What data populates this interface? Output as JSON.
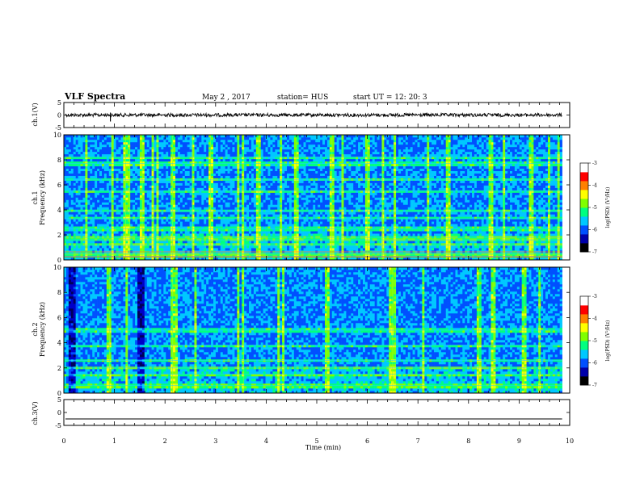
{
  "header": {
    "title": "VLF Spectra",
    "date": "May 2  , 2017",
    "station": "station= HUS",
    "start": "start  UT  =    12: 20: 3"
  },
  "chart_data": [
    {
      "type": "line",
      "panel": "ch1-waveform",
      "ylabel": "ch.1(V)",
      "xlim": [
        0,
        10
      ],
      "ylim": [
        -5,
        5
      ],
      "yticks": [
        "5",
        "0",
        "-5"
      ],
      "level": 0,
      "description_series": "noisy trace near 0 V"
    },
    {
      "type": "heatmap",
      "panel": "ch1-spectrogram",
      "ylabel": "ch.1\nFrequency (kHz)",
      "xlim": [
        0,
        9.85
      ],
      "ylim": [
        0,
        10
      ],
      "yticks": [
        "0",
        "2",
        "4",
        "6",
        "8",
        "10"
      ],
      "colorbar": {
        "label": "log(PSD) (V²/Hz)",
        "ticks": [
          "-3",
          "-4",
          "-5",
          "-6",
          "-7"
        ],
        "range": [
          -7,
          -3
        ]
      },
      "bright_bands_khz": [
        0.3,
        0.5,
        1.2,
        1.6,
        1.8,
        2.5,
        3.3,
        3.9,
        5.5,
        6.4,
        7.7,
        8.2
      ],
      "bright_times_min": [
        0.45,
        0.95,
        1.22,
        1.3,
        1.55,
        1.77,
        1.85,
        2.15,
        2.55,
        2.9,
        3.45,
        3.55,
        3.85,
        4.3,
        4.6,
        5.3,
        5.5,
        6.0,
        6.3,
        6.55,
        7.2,
        7.6,
        8.45,
        8.7,
        9.25,
        9.6,
        9.78
      ]
    },
    {
      "type": "heatmap",
      "panel": "ch2-spectrogram",
      "ylabel": "ch.2\nFrequency (kHz)",
      "xlim": [
        0,
        9.85
      ],
      "ylim": [
        0,
        10
      ],
      "yticks": [
        "0",
        "2",
        "4",
        "6",
        "8",
        "10"
      ],
      "colorbar": {
        "label": "log(PSD) (V²/Hz)",
        "ticks": [
          "-3",
          "-4",
          "-5",
          "-6",
          "-7"
        ],
        "range": [
          -7,
          -3
        ]
      },
      "bright_bands_khz": [
        0.6,
        1.5,
        2.0,
        2.6,
        3.8,
        5.0
      ],
      "bright_times_min": [
        0.9,
        1.25,
        2.15,
        2.22,
        2.6,
        3.45,
        3.55,
        4.25,
        4.35,
        5.2,
        6.45,
        6.5,
        6.55,
        7.1,
        8.2,
        8.5,
        9.1,
        9.4
      ],
      "dark_times_min": [
        [
          1.45,
          1.6
        ],
        [
          0.1,
          0.25
        ]
      ]
    },
    {
      "type": "line",
      "panel": "ch3-waveform",
      "ylabel": "ch.3(V)",
      "xlim": [
        0,
        10
      ],
      "ylim": [
        -5,
        5
      ],
      "yticks": [
        "5",
        "0",
        "-5"
      ],
      "level": -2.5
    }
  ],
  "xaxis": {
    "label": "Time  (min)",
    "ticks": [
      "0",
      "1",
      "2",
      "3",
      "4",
      "5",
      "6",
      "7",
      "8",
      "9",
      "10"
    ]
  },
  "colors": {
    "cmap": [
      "#00005a",
      "#0000c8",
      "#0050ff",
      "#00c8ff",
      "#00ff80",
      "#80ff00",
      "#ffff00",
      "#ff8000",
      "#ff0000",
      "#ffffff"
    ]
  }
}
